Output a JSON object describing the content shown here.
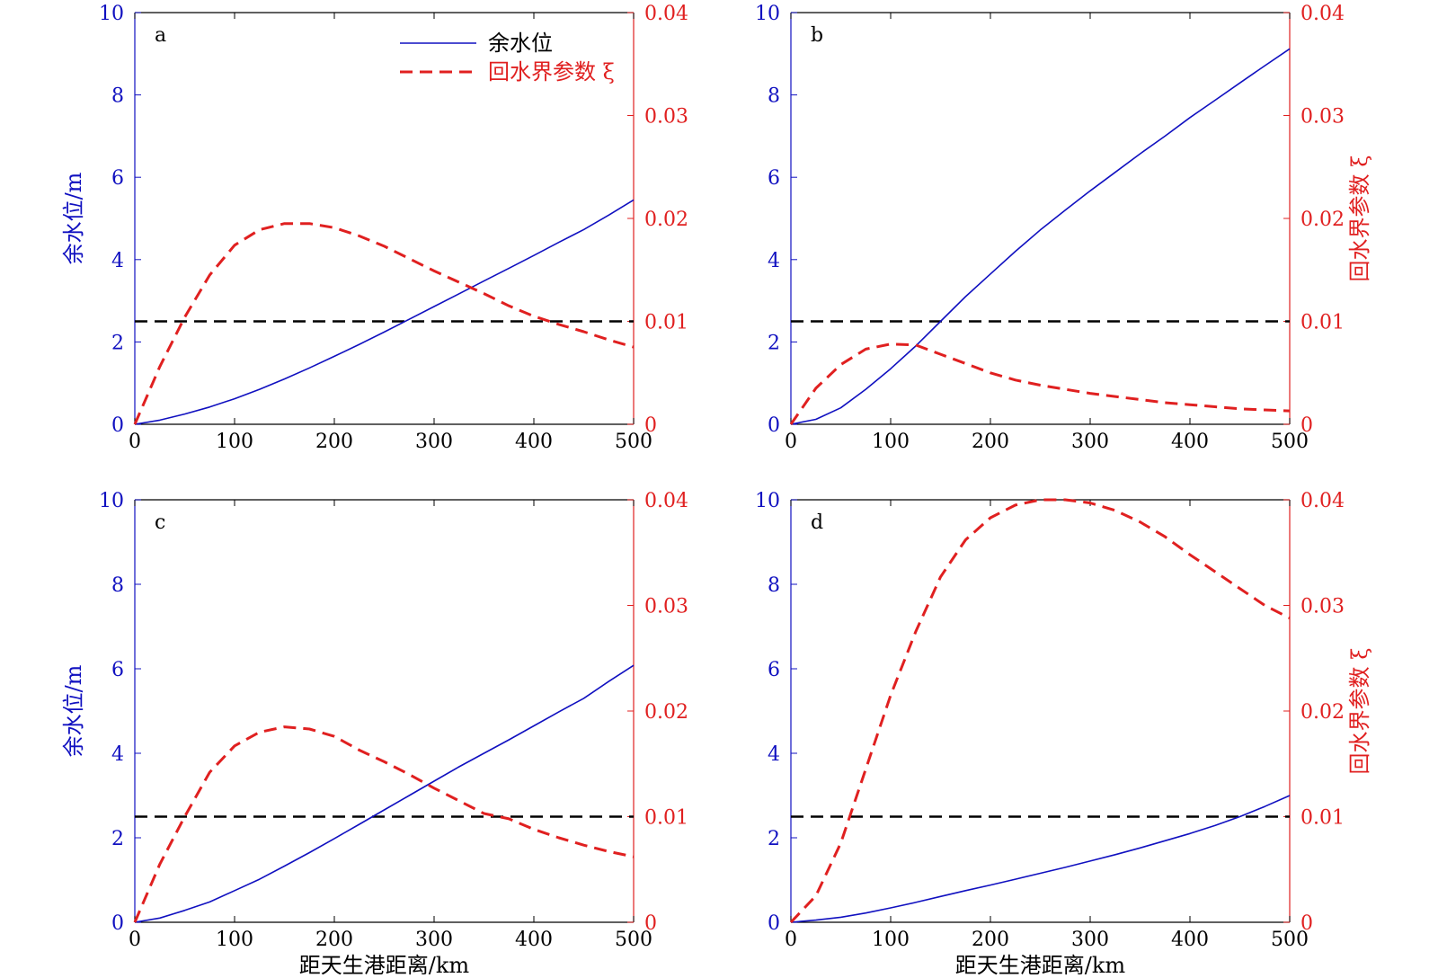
{
  "colors": {
    "residual": "#1010c0",
    "backwater": "#e02020",
    "threshold": "#000000",
    "axis": "#000000"
  },
  "legend": {
    "residual_label": "余水位",
    "backwater_label": "回水界参数 ξ"
  },
  "chart_data": [
    {
      "type": "line",
      "panel_label": "a",
      "x": [
        0,
        25,
        50,
        75,
        100,
        125,
        150,
        175,
        200,
        225,
        250,
        275,
        300,
        325,
        350,
        375,
        400,
        425,
        450,
        475,
        500
      ],
      "series": [
        {
          "name": "余水位",
          "axis": "left",
          "values": [
            0,
            0.1,
            0.25,
            0.42,
            0.62,
            0.85,
            1.1,
            1.37,
            1.65,
            1.94,
            2.24,
            2.55,
            2.86,
            3.17,
            3.48,
            3.79,
            4.1,
            4.42,
            4.73,
            5.08,
            5.45
          ]
        },
        {
          "name": "回水界参数 ξ",
          "axis": "right",
          "values": [
            0,
            0.0056,
            0.0104,
            0.0145,
            0.0174,
            0.0189,
            0.0195,
            0.0195,
            0.0191,
            0.0183,
            0.0173,
            0.0161,
            0.0149,
            0.0138,
            0.0127,
            0.0115,
            0.0105,
            0.0097,
            0.009,
            0.0082,
            0.0075
          ]
        }
      ],
      "threshold": {
        "axis": "right",
        "value": 0.01
      },
      "xlim": [
        0,
        500
      ],
      "ylim_left": [
        0,
        10
      ],
      "ylim_right": [
        0,
        0.04
      ],
      "x_ticks": [
        "0",
        "100",
        "200",
        "300",
        "400",
        "500"
      ],
      "y_left_ticks": [
        "0",
        "2",
        "4",
        "6",
        "8",
        "10"
      ],
      "y_right_ticks": [
        "0",
        "0.01",
        "0.02",
        "0.03",
        "0.04"
      ],
      "xlabel": "",
      "ylabel_left": "余水位/m",
      "ylabel_right": "",
      "legend_position": "top-right"
    },
    {
      "type": "line",
      "panel_label": "b",
      "x": [
        0,
        25,
        50,
        75,
        100,
        125,
        150,
        175,
        200,
        225,
        250,
        275,
        300,
        325,
        350,
        375,
        400,
        425,
        450,
        475,
        500
      ],
      "series": [
        {
          "name": "余水位",
          "axis": "left",
          "values": [
            0,
            0.12,
            0.4,
            0.85,
            1.35,
            1.9,
            2.5,
            3.1,
            3.65,
            4.2,
            4.72,
            5.2,
            5.67,
            6.12,
            6.57,
            7.0,
            7.45,
            7.87,
            8.29,
            8.71,
            9.12
          ]
        },
        {
          "name": "回水界参数 ξ",
          "axis": "right",
          "values": [
            0,
            0.0035,
            0.0058,
            0.0073,
            0.0078,
            0.0077,
            0.0068,
            0.0059,
            0.005,
            0.0043,
            0.0038,
            0.0034,
            0.003,
            0.0027,
            0.0024,
            0.0021,
            0.0019,
            0.0017,
            0.0015,
            0.0014,
            0.0013
          ]
        }
      ],
      "threshold": {
        "axis": "right",
        "value": 0.01
      },
      "xlim": [
        0,
        500
      ],
      "ylim_left": [
        0,
        10
      ],
      "ylim_right": [
        0,
        0.04
      ],
      "x_ticks": [
        "0",
        "100",
        "200",
        "300",
        "400",
        "500"
      ],
      "y_left_ticks": [
        "0",
        "2",
        "4",
        "6",
        "8",
        "10"
      ],
      "y_right_ticks": [
        "0",
        "0.01",
        "0.02",
        "0.03",
        "0.04"
      ],
      "xlabel": "",
      "ylabel_left": "",
      "ylabel_right": "回水界参数 ξ"
    },
    {
      "type": "line",
      "panel_label": "c",
      "x": [
        0,
        25,
        50,
        75,
        100,
        125,
        150,
        175,
        200,
        225,
        250,
        275,
        300,
        325,
        350,
        375,
        400,
        425,
        450,
        475,
        500
      ],
      "series": [
        {
          "name": "余水位",
          "axis": "left",
          "values": [
            0,
            0.1,
            0.28,
            0.48,
            0.75,
            1.02,
            1.33,
            1.65,
            1.98,
            2.32,
            2.66,
            3.0,
            3.34,
            3.68,
            4.0,
            4.32,
            4.65,
            4.98,
            5.3,
            5.7,
            6.08
          ]
        },
        {
          "name": "回水界参数 ξ",
          "axis": "right",
          "values": [
            0,
            0.0055,
            0.01,
            0.0142,
            0.0167,
            0.018,
            0.0185,
            0.0183,
            0.0176,
            0.0163,
            0.0152,
            0.014,
            0.0127,
            0.0115,
            0.0103,
            0.0098,
            0.0088,
            0.008,
            0.0073,
            0.0067,
            0.0062
          ]
        }
      ],
      "threshold": {
        "axis": "right",
        "value": 0.01
      },
      "xlim": [
        0,
        500
      ],
      "ylim_left": [
        0,
        10
      ],
      "ylim_right": [
        0,
        0.04
      ],
      "x_ticks": [
        "0",
        "100",
        "200",
        "300",
        "400",
        "500"
      ],
      "y_left_ticks": [
        "0",
        "2",
        "4",
        "6",
        "8",
        "10"
      ],
      "y_right_ticks": [
        "0",
        "0.01",
        "0.02",
        "0.03",
        "0.04"
      ],
      "xlabel": "距天生港距离/km",
      "ylabel_left": "余水位/m",
      "ylabel_right": ""
    },
    {
      "type": "line",
      "panel_label": "d",
      "x": [
        0,
        25,
        50,
        75,
        100,
        125,
        150,
        175,
        200,
        225,
        250,
        275,
        300,
        325,
        350,
        375,
        400,
        425,
        450,
        475,
        500
      ],
      "series": [
        {
          "name": "余水位",
          "axis": "left",
          "values": [
            0,
            0.05,
            0.12,
            0.22,
            0.34,
            0.47,
            0.61,
            0.75,
            0.88,
            1.02,
            1.16,
            1.3,
            1.45,
            1.6,
            1.76,
            1.93,
            2.1,
            2.29,
            2.5,
            2.74,
            3.0
          ]
        },
        {
          "name": "回水界参数 ξ",
          "axis": "right",
          "values": [
            0,
            0.0025,
            0.0075,
            0.0145,
            0.0215,
            0.0275,
            0.0327,
            0.0362,
            0.0383,
            0.0395,
            0.04,
            0.04,
            0.0397,
            0.039,
            0.0379,
            0.0365,
            0.0348,
            0.0332,
            0.0316,
            0.03,
            0.0288
          ]
        }
      ],
      "threshold": {
        "axis": "right",
        "value": 0.01
      },
      "xlim": [
        0,
        500
      ],
      "ylim_left": [
        0,
        10
      ],
      "ylim_right": [
        0,
        0.04
      ],
      "x_ticks": [
        "0",
        "100",
        "200",
        "300",
        "400",
        "500"
      ],
      "y_left_ticks": [
        "0",
        "2",
        "4",
        "6",
        "8",
        "10"
      ],
      "y_right_ticks": [
        "0",
        "0.01",
        "0.02",
        "0.03",
        "0.04"
      ],
      "xlabel": "距天生港距离/km",
      "ylabel_left": "",
      "ylabel_right": "回水界参数 ξ"
    }
  ]
}
